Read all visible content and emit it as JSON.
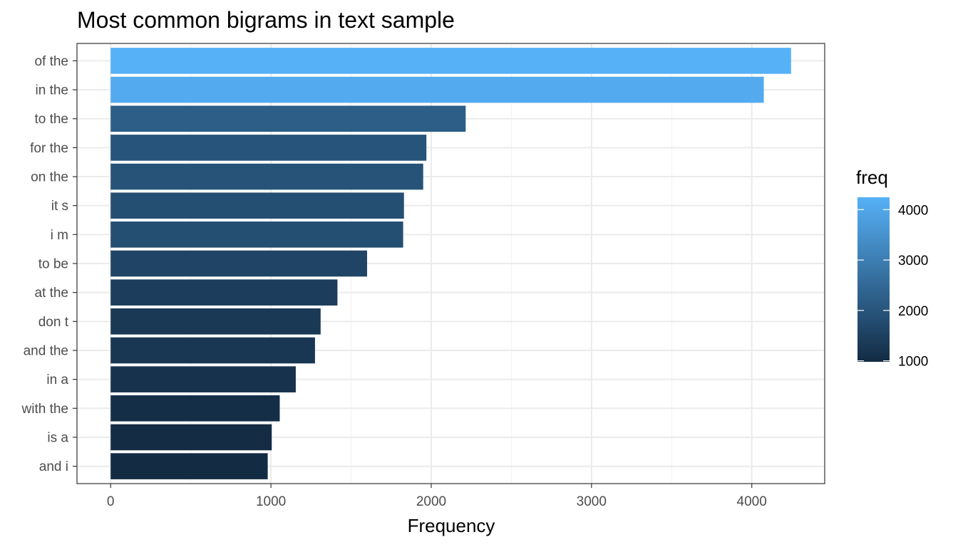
{
  "chart_data": {
    "type": "bar",
    "orientation": "horizontal",
    "title": "Most common bigrams in text sample",
    "xlabel": "Frequency",
    "ylabel": "",
    "categories": [
      "of the",
      "in the",
      "to the",
      "for the",
      "on the",
      "it s",
      "i m",
      "to be",
      "at the",
      "don t",
      "and the",
      "in a",
      "with the",
      "is a",
      "and i"
    ],
    "values": [
      4245,
      4075,
      2215,
      1970,
      1950,
      1830,
      1825,
      1600,
      1415,
      1310,
      1275,
      1155,
      1055,
      1005,
      980
    ],
    "xlim": [
      -210,
      4455
    ],
    "x_ticks": [
      0,
      1000,
      2000,
      3000,
      4000
    ],
    "x_tick_labels": [
      "0",
      "1000",
      "2000",
      "3000",
      "4000"
    ],
    "grid": true,
    "legend": {
      "title": "freq",
      "position": "right",
      "type": "colorbar",
      "range": [
        980,
        4245
      ],
      "ticks": [
        1000,
        2000,
        3000,
        4000
      ],
      "tick_labels": [
        "1000",
        "2000",
        "3000",
        "4000"
      ],
      "color_low": "#132b43",
      "color_high": "#56b1f7"
    }
  }
}
